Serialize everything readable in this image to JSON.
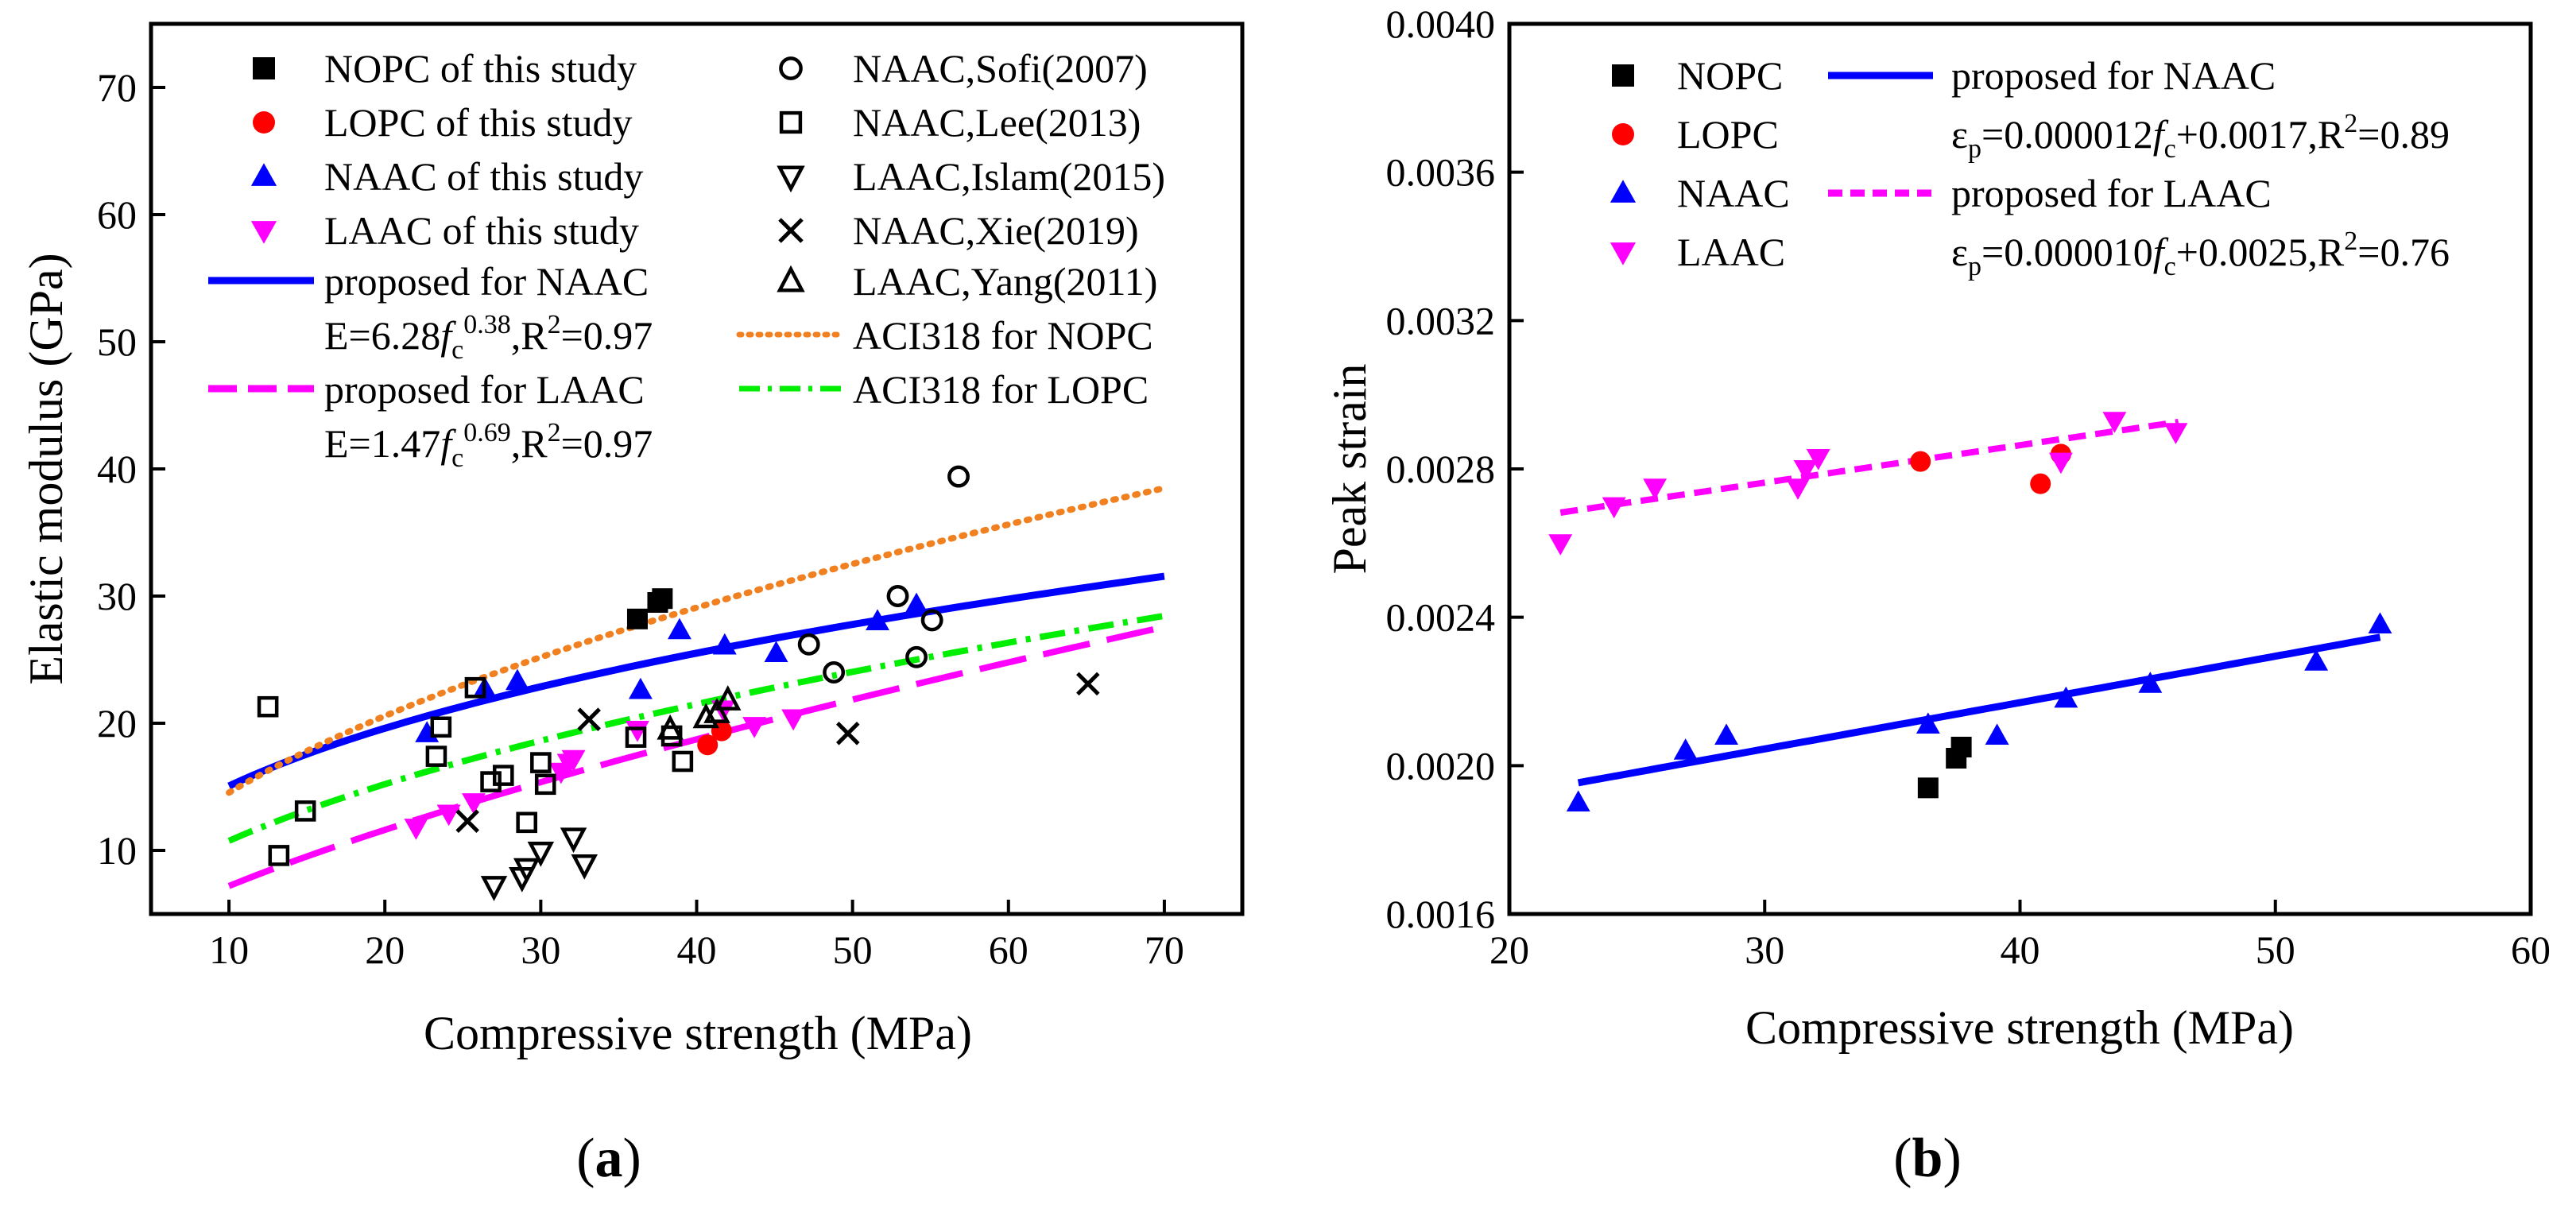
{
  "chart_data": [
    {
      "id": "a",
      "type": "scatter",
      "panel_label": "(a)",
      "xlabel": "Compressive strength (MPa)",
      "ylabel": "Elastic modulus (GPa)",
      "xlim": [
        5,
        75
      ],
      "ylim": [
        5,
        75
      ],
      "xticks": [
        10,
        20,
        30,
        40,
        50,
        60,
        70
      ],
      "yticks": [
        10,
        20,
        30,
        40,
        50,
        60,
        70
      ],
      "grid": false,
      "legend_position": "top",
      "series": [
        {
          "key": "nopc",
          "name": "NOPC of this study",
          "marker": "square-filled",
          "color": "#000000",
          "x": [
            36.2,
            37.5,
            37.8
          ],
          "y": [
            28.2,
            29.5,
            29.8
          ]
        },
        {
          "key": "lopc",
          "name": "LOPC of this study",
          "marker": "circle-filled",
          "color": "#ff0000",
          "x": [
            40.7,
            41.6
          ],
          "y": [
            18.3,
            19.4
          ]
        },
        {
          "key": "naac",
          "name": "NAAC of this study",
          "marker": "triangle-up-filled",
          "color": "#0000ff",
          "x": [
            22.7,
            26.4,
            28.5,
            36.4,
            38.9,
            41.8,
            45.1,
            51.6,
            54.1
          ],
          "y": [
            19.2,
            22.7,
            23.3,
            22.6,
            27.3,
            26.1,
            25.5,
            28.0,
            29.3
          ]
        },
        {
          "key": "laac",
          "name": "LAAC of this study",
          "marker": "triangle-down-filled",
          "color": "#ff00ff",
          "x": [
            22.0,
            24.1,
            25.7,
            31.3,
            31.8,
            32.1,
            36.2,
            41.7,
            43.7,
            46.2
          ],
          "y": [
            11.8,
            12.9,
            13.8,
            16.2,
            16.9,
            17.2,
            19.5,
            21.1,
            19.8,
            20.4
          ]
        },
        {
          "key": "sofi",
          "name": "NAAC,Sofi(2007)",
          "marker": "circle-open",
          "color": "#000000",
          "x": [
            47.2,
            48.8,
            52.9,
            54.1,
            55.1,
            56.8
          ],
          "y": [
            26.2,
            24.0,
            30.0,
            25.2,
            28.1,
            39.4
          ]
        },
        {
          "key": "lee",
          "name": "NAAC,Lee(2013)",
          "marker": "square-open",
          "color": "#000000",
          "x": [
            12.5,
            13.2,
            14.9,
            23.3,
            23.6,
            25.8,
            26.8,
            27.6,
            29.1,
            30.0,
            30.3,
            36.1,
            38.4,
            39.1
          ],
          "y": [
            21.3,
            9.6,
            13.1,
            17.4,
            19.7,
            22.8,
            15.4,
            15.9,
            12.2,
            16.9,
            15.2,
            18.9,
            19.0,
            17.0
          ]
        },
        {
          "key": "islam",
          "name": "LAAC,Islam(2015)",
          "marker": "triangle-down-open",
          "color": "#000000",
          "x": [
            27.0,
            28.8,
            29.1,
            30.0,
            32.1,
            32.8
          ],
          "y": [
            7.2,
            7.9,
            8.6,
            9.9,
            11.0,
            8.9
          ]
        },
        {
          "key": "xie",
          "name": "NAAC,Xie(2019)",
          "marker": "cross",
          "color": "#000000",
          "x": [
            25.3,
            33.1,
            49.7,
            65.1
          ],
          "y": [
            12.3,
            20.3,
            19.2,
            23.1
          ]
        },
        {
          "key": "yang",
          "name": "LAAC,Yang(2011)",
          "marker": "triangle-up-open",
          "color": "#000000",
          "x": [
            38.3,
            40.6,
            41.3,
            42.0
          ],
          "y": [
            19.5,
            20.4,
            20.8,
            21.8
          ]
        }
      ],
      "fits": [
        {
          "key": "fit_naac",
          "name": "proposed for NAAC",
          "equation": "E=6.28fc0.38,R2=0.97",
          "color": "#0000ff",
          "style": "solid",
          "a": 6.28,
          "b": 0.38,
          "x_range": [
            10,
            70
          ]
        },
        {
          "key": "fit_laac",
          "name": "proposed for LAAC",
          "equation": "E=1.47fc0.69,R2=0.97",
          "color": "#ff00ff",
          "style": "dash",
          "a": 1.47,
          "b": 0.69,
          "x_range": [
            10,
            70
          ]
        },
        {
          "key": "aci_nopc",
          "name": "ACI318 for NOPC",
          "color": "#f08020",
          "style": "dot",
          "a": 4.6,
          "b": 0.5,
          "x_range": [
            10,
            70
          ]
        },
        {
          "key": "aci_lopc",
          "name": "ACI318 for LOPC",
          "color": "#00ee00",
          "style": "dashdot",
          "a": 3.4,
          "b": 0.5,
          "x_range": [
            10,
            70
          ]
        }
      ]
    },
    {
      "id": "b",
      "type": "scatter",
      "panel_label": "(b)",
      "xlabel": "Compressive strength (MPa)",
      "ylabel": "Peak strain",
      "xlim": [
        20,
        60
      ],
      "ylim": [
        0.0016,
        0.004
      ],
      "xticks": [
        20,
        30,
        40,
        50,
        60
      ],
      "yticks": [
        0.0016,
        0.002,
        0.0024,
        0.0028,
        0.0032,
        0.0036,
        0.004
      ],
      "ytick_labels": [
        "0.0016",
        "0.0020",
        "0.0024",
        "0.0028",
        "0.0032",
        "0.0036",
        "0.0040"
      ],
      "grid": false,
      "legend_position": "top",
      "series": [
        {
          "key": "nopc",
          "name": "NOPC",
          "marker": "square-filled",
          "color": "#000000",
          "x": [
            36.4,
            37.5,
            37.7
          ],
          "y": [
            0.00194,
            0.00202,
            0.00205
          ]
        },
        {
          "key": "lopc",
          "name": "LOPC",
          "marker": "circle-filled",
          "color": "#ff0000",
          "x": [
            36.1,
            40.8,
            41.6
          ],
          "y": [
            0.00282,
            0.00276,
            0.00284
          ]
        },
        {
          "key": "naac",
          "name": "NAAC",
          "marker": "triangle-up-filled",
          "color": "#0000ff",
          "x": [
            22.7,
            26.9,
            28.5,
            36.4,
            39.1,
            41.8,
            45.1,
            51.6,
            54.1
          ],
          "y": [
            0.0019,
            0.00204,
            0.00208,
            0.00211,
            0.00208,
            0.00218,
            0.00222,
            0.00228,
            0.00238
          ]
        },
        {
          "key": "laac",
          "name": "LAAC",
          "marker": "triangle-down-filled",
          "color": "#ff00ff",
          "x": [
            22.0,
            24.1,
            25.7,
            31.3,
            31.6,
            32.1,
            41.6,
            43.7,
            46.1
          ],
          "y": [
            0.0026,
            0.0027,
            0.00275,
            0.00275,
            0.0028,
            0.00283,
            0.00282,
            0.00293,
            0.0029
          ]
        }
      ],
      "fits": [
        {
          "key": "fit_naac",
          "name": "proposed for NAAC",
          "equation": "εp=0.000012fc+0.0017,R2=0.89",
          "color": "#0000ff",
          "style": "solid",
          "slope": 1.25e-05,
          "intercept": 0.00167,
          "x_range": [
            22.7,
            54.1
          ]
        },
        {
          "key": "fit_laac",
          "name": "proposed for LAAC",
          "equation": "εp=0.000010fc+0.0025,R2=0.76",
          "color": "#ff00ff",
          "style": "dash",
          "slope": 1.01e-05,
          "intercept": 0.00246,
          "x_range": [
            22.0,
            46.2
          ]
        }
      ]
    }
  ]
}
